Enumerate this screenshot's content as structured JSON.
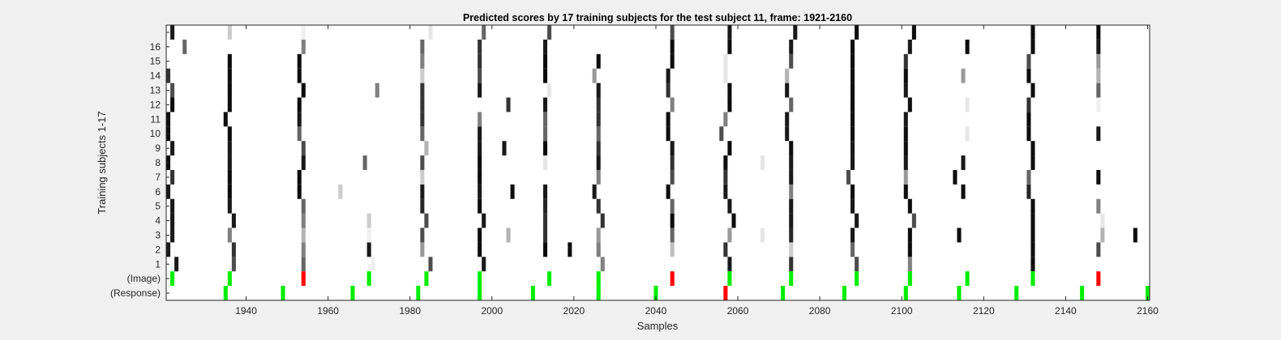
{
  "chart_data": {
    "type": "heatmap",
    "title": "Predicted scores by 17 training subjects for the test subject 11, frame: 1921-2160",
    "xlabel": "Samples",
    "ylabel": "Training subjects 1-17",
    "xlim": [
      1921,
      2160
    ],
    "xticks": [
      1940,
      1960,
      1980,
      2000,
      2020,
      2040,
      2060,
      2080,
      2100,
      2120,
      2140,
      2160
    ],
    "row_labels": [
      "(Response)",
      "(Image)",
      "1",
      "2",
      "3",
      "4",
      "5",
      "6",
      "7",
      "8",
      "9",
      "10",
      "11",
      "12",
      "13",
      "14",
      "15",
      "16",
      ""
    ],
    "colormap": "gray (black = high score, white = low)",
    "marker_colors": {
      "correct": "#00ee00",
      "incorrect": "#ff0000"
    },
    "response_markers": [
      {
        "x": 1935,
        "c": "g"
      },
      {
        "x": 1949,
        "c": "g"
      },
      {
        "x": 1966,
        "c": "g"
      },
      {
        "x": 1982,
        "c": "g"
      },
      {
        "x": 1997,
        "c": "g"
      },
      {
        "x": 2010,
        "c": "g"
      },
      {
        "x": 2026,
        "c": "g"
      },
      {
        "x": 2040,
        "c": "g"
      },
      {
        "x": 2057,
        "c": "r"
      },
      {
        "x": 2071,
        "c": "g"
      },
      {
        "x": 2086,
        "c": "g"
      },
      {
        "x": 2101,
        "c": "g"
      },
      {
        "x": 2114,
        "c": "g"
      },
      {
        "x": 2128,
        "c": "g"
      },
      {
        "x": 2144,
        "c": "g"
      },
      {
        "x": 2160,
        "c": "g"
      }
    ],
    "image_markers": [
      {
        "x": 1922,
        "c": "g"
      },
      {
        "x": 1936,
        "c": "g"
      },
      {
        "x": 1954,
        "c": "r"
      },
      {
        "x": 1970,
        "c": "g"
      },
      {
        "x": 1984,
        "c": "g"
      },
      {
        "x": 1997,
        "c": "g"
      },
      {
        "x": 2014,
        "c": "g"
      },
      {
        "x": 2026,
        "c": "g"
      },
      {
        "x": 2044,
        "c": "r"
      },
      {
        "x": 2058,
        "c": "g"
      },
      {
        "x": 2073,
        "c": "g"
      },
      {
        "x": 2089,
        "c": "g"
      },
      {
        "x": 2102,
        "c": "g"
      },
      {
        "x": 2116,
        "c": "g"
      },
      {
        "x": 2132,
        "c": "g"
      },
      {
        "x": 2148,
        "c": "r"
      }
    ],
    "subject_scores": [
      {
        "subject": 1,
        "cells": [
          [
            1923,
            0.9
          ],
          [
            1937,
            0.7
          ],
          [
            1954,
            0.6
          ],
          [
            1971,
            0.06
          ],
          [
            1985,
            0.7
          ],
          [
            1998,
            0.9
          ],
          [
            2027,
            0.5
          ],
          [
            2058,
            0.9
          ],
          [
            2073,
            0.8
          ],
          [
            2089,
            0.7
          ],
          [
            2102,
            0.5
          ],
          [
            2132,
            0.95
          ]
        ]
      },
      {
        "subject": 2,
        "cells": [
          [
            1921,
            0.9
          ],
          [
            1937,
            0.8
          ],
          [
            1954,
            0.5
          ],
          [
            1970,
            0.9
          ],
          [
            1983,
            0.4
          ],
          [
            1997,
            0.95
          ],
          [
            2013,
            0.95
          ],
          [
            2019,
            0.95
          ],
          [
            2026,
            0.5
          ],
          [
            2044,
            0.25
          ],
          [
            2057,
            0.8
          ],
          [
            2073,
            0.2
          ],
          [
            2088,
            0.6
          ],
          [
            2102,
            0.95
          ],
          [
            2132,
            0.95
          ],
          [
            2148,
            0.7
          ]
        ]
      },
      {
        "subject": 3,
        "cells": [
          [
            1922,
            0.9
          ],
          [
            1936,
            0.5
          ],
          [
            1954,
            0.3
          ],
          [
            1970,
            0.06
          ],
          [
            1983,
            0.7
          ],
          [
            1997,
            0.95
          ],
          [
            2004,
            0.3
          ],
          [
            2013,
            0.8
          ],
          [
            2026,
            0.4
          ],
          [
            2044,
            0.6
          ],
          [
            2058,
            0.4
          ],
          [
            2066,
            0.1
          ],
          [
            2073,
            0.85
          ],
          [
            2088,
            0.9
          ],
          [
            2102,
            0.95
          ],
          [
            2114,
            0.95
          ],
          [
            2132,
            0.95
          ],
          [
            2149,
            0.3
          ],
          [
            2157,
            0.95
          ]
        ]
      },
      {
        "subject": 4,
        "cells": [
          [
            1922,
            0.9
          ],
          [
            1937,
            0.9
          ],
          [
            1954,
            0.5
          ],
          [
            1970,
            0.2
          ],
          [
            1984,
            0.7
          ],
          [
            1998,
            0.9
          ],
          [
            2013,
            0.8
          ],
          [
            2027,
            0.8
          ],
          [
            2044,
            0.95
          ],
          [
            2059,
            0.95
          ],
          [
            2073,
            0.9
          ],
          [
            2089,
            0.9
          ],
          [
            2103,
            0.7
          ],
          [
            2132,
            0.95
          ],
          [
            2149,
            0.1
          ]
        ]
      },
      {
        "subject": 5,
        "cells": [
          [
            1922,
            0.9
          ],
          [
            1936,
            0.9
          ],
          [
            1954,
            0.6
          ],
          [
            1983,
            0.85
          ],
          [
            1997,
            0.95
          ],
          [
            2013,
            0.85
          ],
          [
            2026,
            0.8
          ],
          [
            2044,
            0.6
          ],
          [
            2058,
            0.9
          ],
          [
            2073,
            0.9
          ],
          [
            2088,
            0.9
          ],
          [
            2102,
            0.95
          ],
          [
            2132,
            0.95
          ],
          [
            2148,
            0.5
          ]
        ]
      },
      {
        "subject": 6,
        "cells": [
          [
            1921,
            0.9
          ],
          [
            1936,
            0.95
          ],
          [
            1953,
            0.95
          ],
          [
            1963,
            0.2
          ],
          [
            1983,
            0.9
          ],
          [
            1997,
            0.9
          ],
          [
            2005,
            0.95
          ],
          [
            2013,
            0.9
          ],
          [
            2025,
            0.9
          ],
          [
            2043,
            0.95
          ],
          [
            2057,
            0.9
          ],
          [
            2073,
            0.5
          ],
          [
            2088,
            0.95
          ],
          [
            2101,
            0.95
          ],
          [
            2115,
            0.95
          ],
          [
            2131,
            0.85
          ]
        ]
      },
      {
        "subject": 7,
        "cells": [
          [
            1922,
            0.8
          ],
          [
            1936,
            0.95
          ],
          [
            1953,
            0.95
          ],
          [
            1983,
            0.2
          ],
          [
            1997,
            0.95
          ],
          [
            2026,
            0.5
          ],
          [
            2044,
            0.7
          ],
          [
            2057,
            0.8
          ],
          [
            2073,
            0.9
          ],
          [
            2087,
            0.7
          ],
          [
            2101,
            0.4
          ],
          [
            2113,
            0.95
          ],
          [
            2131,
            0.6
          ],
          [
            2148,
            0.95
          ]
        ]
      },
      {
        "subject": 8,
        "cells": [
          [
            1921,
            0.95
          ],
          [
            1936,
            0.9
          ],
          [
            1954,
            0.9
          ],
          [
            1969,
            0.6
          ],
          [
            1983,
            0.7
          ],
          [
            1997,
            0.95
          ],
          [
            2013,
            0.1
          ],
          [
            2026,
            0.9
          ],
          [
            2044,
            0.8
          ],
          [
            2057,
            0.95
          ],
          [
            2066,
            0.1
          ],
          [
            2073,
            0.9
          ],
          [
            2088,
            0.9
          ],
          [
            2101,
            0.9
          ],
          [
            2115,
            0.9
          ],
          [
            2132,
            0.95
          ]
        ]
      },
      {
        "subject": 9,
        "cells": [
          [
            1922,
            0.9
          ],
          [
            1936,
            0.9
          ],
          [
            1954,
            0.7
          ],
          [
            1984,
            0.3
          ],
          [
            1997,
            0.9
          ],
          [
            2003,
            0.9
          ],
          [
            2013,
            0.95
          ],
          [
            2026,
            0.8
          ],
          [
            2044,
            0.9
          ],
          [
            2058,
            0.95
          ],
          [
            2073,
            0.95
          ],
          [
            2088,
            0.9
          ],
          [
            2101,
            0.95
          ],
          [
            2132,
            0.95
          ]
        ]
      },
      {
        "subject": 10,
        "cells": [
          [
            1921,
            0.95
          ],
          [
            1936,
            0.95
          ],
          [
            1953,
            0.6
          ],
          [
            1983,
            0.6
          ],
          [
            1997,
            0.9
          ],
          [
            2013,
            0.6
          ],
          [
            2026,
            0.6
          ],
          [
            2043,
            0.95
          ],
          [
            2056,
            0.7
          ],
          [
            2072,
            0.9
          ],
          [
            2088,
            0.95
          ],
          [
            2101,
            0.95
          ],
          [
            2116,
            0.1
          ],
          [
            2131,
            0.95
          ],
          [
            2148,
            0.9
          ]
        ]
      },
      {
        "subject": 11,
        "cells": [
          [
            1921,
            0.95
          ],
          [
            1935,
            0.95
          ],
          [
            1953,
            0.9
          ],
          [
            1983,
            0.8
          ],
          [
            1997,
            0.5
          ],
          [
            2013,
            0.6
          ],
          [
            2026,
            0.8
          ],
          [
            2043,
            0.95
          ],
          [
            2057,
            0.5
          ],
          [
            2072,
            0.9
          ],
          [
            2088,
            0.95
          ],
          [
            2101,
            0.9
          ],
          [
            2131,
            0.95
          ]
        ]
      },
      {
        "subject": 12,
        "cells": [
          [
            1922,
            0.95
          ],
          [
            1936,
            0.95
          ],
          [
            1953,
            0.95
          ],
          [
            1983,
            0.8
          ],
          [
            2004,
            0.8
          ],
          [
            2013,
            0.9
          ],
          [
            2026,
            0.8
          ],
          [
            2044,
            0.5
          ],
          [
            2058,
            0.95
          ],
          [
            2073,
            0.6
          ],
          [
            2088,
            0.95
          ],
          [
            2102,
            0.95
          ],
          [
            2116,
            0.1
          ],
          [
            2131,
            0.8
          ],
          [
            2148,
            0.06
          ]
        ]
      },
      {
        "subject": 13,
        "cells": [
          [
            1922,
            0.7
          ],
          [
            1936,
            0.95
          ],
          [
            1954,
            0.95
          ],
          [
            1972,
            0.5
          ],
          [
            1983,
            0.8
          ],
          [
            1997,
            0.9
          ],
          [
            2014,
            0.1
          ],
          [
            2026,
            0.9
          ],
          [
            2043,
            0.8
          ],
          [
            2058,
            0.95
          ],
          [
            2072,
            0.9
          ],
          [
            2088,
            0.95
          ],
          [
            2101,
            0.9
          ],
          [
            2132,
            0.95
          ],
          [
            2148,
            0.6
          ]
        ]
      },
      {
        "subject": 14,
        "cells": [
          [
            1921,
            0.8
          ],
          [
            1936,
            0.95
          ],
          [
            1953,
            0.95
          ],
          [
            1983,
            0.2
          ],
          [
            1997,
            0.7
          ],
          [
            2013,
            0.95
          ],
          [
            2025,
            0.4
          ],
          [
            2043,
            0.9
          ],
          [
            2057,
            0.1
          ],
          [
            2072,
            0.3
          ],
          [
            2088,
            0.95
          ],
          [
            2101,
            0.95
          ],
          [
            2115,
            0.4
          ],
          [
            2131,
            0.95
          ],
          [
            2148,
            0.3
          ]
        ]
      },
      {
        "subject": 15,
        "cells": [
          [
            1936,
            0.95
          ],
          [
            1953,
            0.95
          ],
          [
            1983,
            0.5
          ],
          [
            1997,
            0.8
          ],
          [
            2013,
            0.95
          ],
          [
            2026,
            0.95
          ],
          [
            2044,
            0.95
          ],
          [
            2057,
            0.1
          ],
          [
            2073,
            0.7
          ],
          [
            2088,
            0.95
          ],
          [
            2101,
            0.8
          ],
          [
            2131,
            0.7
          ],
          [
            2148,
            0.4
          ]
        ]
      },
      {
        "subject": 16,
        "cells": [
          [
            1925,
            0.6
          ],
          [
            1954,
            0.5
          ],
          [
            1983,
            0.6
          ],
          [
            1997,
            0.8
          ],
          [
            2013,
            0.9
          ],
          [
            2044,
            0.95
          ],
          [
            2058,
            0.95
          ],
          [
            2073,
            0.9
          ],
          [
            2088,
            0.95
          ],
          [
            2102,
            0.9
          ],
          [
            2116,
            0.95
          ],
          [
            2132,
            0.95
          ],
          [
            2148,
            0.9
          ]
        ]
      },
      {
        "subject": 17,
        "cells": [
          [
            1922,
            0.9
          ],
          [
            1936,
            0.2
          ],
          [
            1954,
            0.06
          ],
          [
            1985,
            0.1
          ],
          [
            1998,
            0.6
          ],
          [
            2014,
            0.7
          ],
          [
            2044,
            0.7
          ],
          [
            2058,
            0.9
          ],
          [
            2074,
            0.9
          ],
          [
            2089,
            0.95
          ],
          [
            2103,
            0.95
          ],
          [
            2132,
            0.95
          ],
          [
            2148,
            0.95
          ]
        ]
      }
    ]
  }
}
